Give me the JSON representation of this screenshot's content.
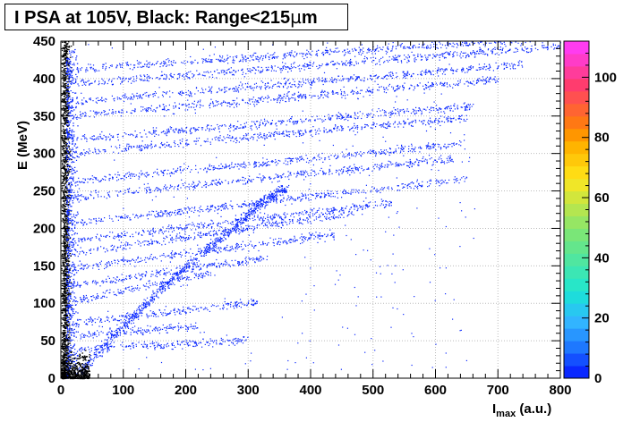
{
  "chart_data": {
    "type": "heatmap",
    "title": "I PSA at 105V, Black: Range<215µm",
    "title_parts": {
      "prefix": "I PSA at 105V, Black: Range<215",
      "micro": "µ",
      "suffix": "m"
    },
    "xlabel": {
      "main": "I",
      "sub": "max",
      "rest": " (a.u.)"
    },
    "ylabel": "E (MeV)",
    "xlim": [
      0,
      800
    ],
    "ylim": [
      0,
      450
    ],
    "x_ticks": [
      "0",
      "100",
      "200",
      "300",
      "400",
      "500",
      "600",
      "700",
      "800"
    ],
    "y_ticks": [
      "0",
      "50",
      "100",
      "150",
      "200",
      "250",
      "300",
      "350",
      "400",
      "450"
    ],
    "colorbar": {
      "range": [
        0,
        112
      ],
      "ticks": [
        "0",
        "20",
        "40",
        "60",
        "80",
        "100"
      ],
      "palette": [
        "#0a28ff",
        "#1450ff",
        "#1e78ff",
        "#2896ff",
        "#32b4ff",
        "#28c8f0",
        "#1edcdc",
        "#28e6c8",
        "#3ce6b4",
        "#50e6a0",
        "#64e68c",
        "#7ae678",
        "#96e664",
        "#b4e650",
        "#d2e63c",
        "#f0e628",
        "#ffdc14",
        "#ffc80a",
        "#ffb400",
        "#ff9600",
        "#ff7814",
        "#ff6432",
        "#ff5050",
        "#ff3c6e",
        "#ff3c9b",
        "#ff3cc8",
        "#ff3cf0"
      ]
    },
    "grid": true,
    "grid_style": "dotted",
    "series": [
      {
        "color": "#0a28ff",
        "description_from_legend": "",
        "points": "density"
      },
      {
        "color": "#000000",
        "points": "density"
      }
    ],
    "bands": [
      {
        "e0": 38,
        "slope": 0.045,
        "x_end": 300
      },
      {
        "e0": 55,
        "slope": 0.07,
        "x_end": 220
      },
      {
        "e0": 72,
        "slope": 0.095,
        "x_end": 320
      },
      {
        "e0": 100,
        "slope": 0.17,
        "x_end": 240
      },
      {
        "e0": 122,
        "slope": 0.12,
        "x_end": 330
      },
      {
        "e0": 145,
        "slope": 0.11,
        "x_end": 440
      },
      {
        "e0": 165,
        "slope": 0.12,
        "x_end": 470
      },
      {
        "e0": 182,
        "slope": 0.1,
        "x_end": 530
      },
      {
        "e0": 205,
        "slope": 0.095,
        "x_end": 650
      },
      {
        "e0": 240,
        "slope": 0.085,
        "x_end": 630
      },
      {
        "e0": 262,
        "slope": 0.08,
        "x_end": 640
      },
      {
        "e0": 300,
        "slope": 0.075,
        "x_end": 650
      },
      {
        "e0": 318,
        "slope": 0.07,
        "x_end": 660
      },
      {
        "e0": 350,
        "slope": 0.07,
        "x_end": 700
      },
      {
        "e0": 368,
        "slope": 0.07,
        "x_end": 740
      },
      {
        "e0": 392,
        "slope": 0.065,
        "x_end": 800
      },
      {
        "e0": 412,
        "slope": 0.055,
        "x_end": 800
      }
    ],
    "diagonal_band": {
      "x": [
        30,
        80,
        130,
        180,
        230,
        280,
        320,
        360
      ],
      "y": [
        8,
        55,
        95,
        135,
        170,
        205,
        235,
        255
      ]
    }
  }
}
